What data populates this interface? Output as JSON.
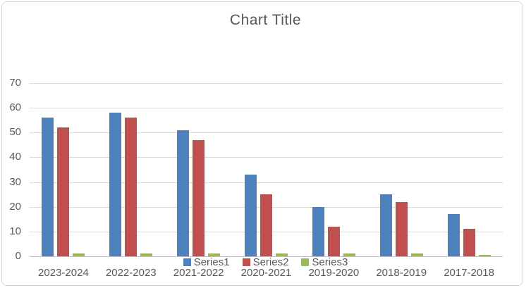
{
  "chart_data": {
    "type": "bar",
    "title": "Chart Title",
    "categories": [
      "2023-2024",
      "2022-2023",
      "2021-2022",
      "2020-2021",
      "2019-2020",
      "2018-2019",
      "2017-2018"
    ],
    "series": [
      {
        "name": "Series1",
        "color": "#4F81BD",
        "values": [
          56,
          58,
          51,
          33,
          20,
          25,
          17
        ]
      },
      {
        "name": "Series2",
        "color": "#C0504D",
        "values": [
          52,
          56,
          47,
          25,
          12,
          22,
          11
        ]
      },
      {
        "name": "Series3",
        "color": "#9BBB59",
        "values": [
          1,
          1,
          1,
          1,
          1,
          1,
          0.5
        ]
      }
    ],
    "xlabel": "",
    "ylabel": "",
    "ylim": [
      0,
      70
    ],
    "ytick_step": 10,
    "ytick_labels": [
      "0",
      "10",
      "20",
      "30",
      "40",
      "50",
      "60",
      "70"
    ],
    "grid": true,
    "legend_position": "bottom",
    "colors": {
      "text": "#595959",
      "gridline": "#D9D9D9",
      "axis_line": "#BFBFBF",
      "frame_border": "#D6D6D6",
      "background": "#FFFFFF"
    }
  }
}
